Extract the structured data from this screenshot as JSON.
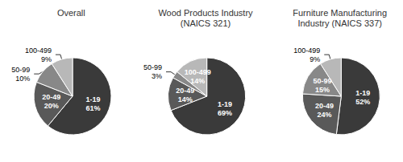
{
  "chart_data": [
    {
      "type": "pie",
      "title": "Overall",
      "categories": [
        "1-19",
        "20-49",
        "50-99",
        "100-499"
      ],
      "values": [
        61,
        20,
        10,
        9
      ],
      "value_labels": [
        "61%",
        "20%",
        "10%",
        "9%"
      ],
      "colors": [
        "#3a3a3a",
        "#595959",
        "#888888",
        "#b8b8b8"
      ],
      "data_labels": true
    },
    {
      "type": "pie",
      "title": "Wood Products Industry\n(NAICS 321)",
      "categories": [
        "1-19",
        "20-49",
        "50-99",
        "100-499"
      ],
      "values": [
        69,
        14,
        3,
        14
      ],
      "value_labels": [
        "69%",
        "14%",
        "3%",
        "14%"
      ],
      "colors": [
        "#3a3a3a",
        "#595959",
        "#888888",
        "#b8b8b8"
      ],
      "data_labels": true
    },
    {
      "type": "pie",
      "title": "Furniture Manufacturing\nIndustry (NAICS 337)",
      "categories": [
        "1-19",
        "20-49",
        "50-99",
        "100-499"
      ],
      "values": [
        52,
        24,
        15,
        9
      ],
      "value_labels": [
        "52%",
        "24%",
        "15%",
        "9%"
      ],
      "colors": [
        "#3a3a3a",
        "#595959",
        "#888888",
        "#b8b8b8"
      ],
      "data_labels": true
    }
  ]
}
